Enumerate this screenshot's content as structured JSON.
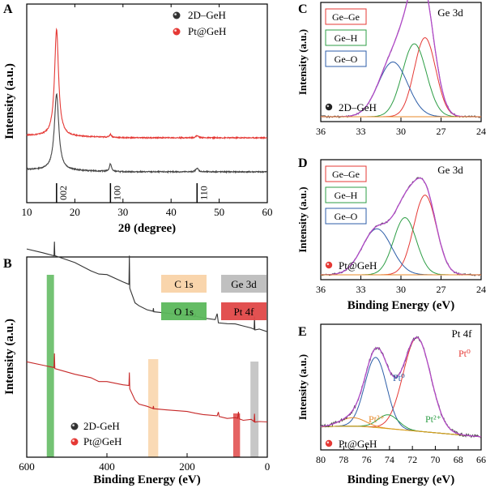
{
  "figure": {
    "panel_labels": {
      "a": "A",
      "b": "B",
      "c": "C",
      "d": "D",
      "e": "E"
    }
  },
  "chart_data": [
    {
      "panel": "A",
      "type": "line",
      "title": "",
      "xlabel": "2θ (degree)",
      "ylabel": "Intensity (a.u.)",
      "xlim": [
        10,
        60
      ],
      "x_ticks": [
        10,
        20,
        30,
        40,
        50,
        60
      ],
      "legend": [
        {
          "label": "2D–GeH",
          "color": "#333333"
        },
        {
          "label": "Pt@GeH",
          "color": "#e53935"
        }
      ],
      "reference_peaks": [
        {
          "x": 16.2,
          "label": "002"
        },
        {
          "x": 27.4,
          "label": "100"
        },
        {
          "x": 45.4,
          "label": "110"
        }
      ],
      "series": [
        {
          "name": "2D–GeH",
          "color": "#444444",
          "baseline": 0,
          "peaks": [
            {
              "x": 16.2,
              "h": 100,
              "w": 0.55
            },
            {
              "x": 27.4,
              "h": 10,
              "w": 0.25
            },
            {
              "x": 45.4,
              "h": 5,
              "w": 0.3
            }
          ]
        },
        {
          "name": "Pt@GeH",
          "color": "#e53935",
          "baseline": 46,
          "peaks": [
            {
              "x": 16.2,
              "h": 140,
              "w": 0.5
            },
            {
              "x": 27.4,
              "h": 4,
              "w": 0.25
            },
            {
              "x": 45.4,
              "h": 3,
              "w": 0.3
            }
          ]
        }
      ]
    },
    {
      "panel": "B",
      "type": "line",
      "xlabel": "Binding Energy (eV)",
      "ylabel": "Intensity (a.u.)",
      "xlim": [
        600,
        0
      ],
      "x_ticks": [
        600,
        400,
        200,
        0
      ],
      "legend": [
        {
          "label": "2D-GeH",
          "color": "#333333"
        },
        {
          "label": "Pt@GeH",
          "color": "#e53935"
        }
      ],
      "region_legend": [
        {
          "label": "C 1s",
          "color": "#f9d3a8"
        },
        {
          "label": "Ge 3d",
          "color": "#bdbdbd"
        },
        {
          "label": "O 1s",
          "color": "#5cb85c"
        },
        {
          "label": "Pt 4f",
          "color": "#e04848"
        }
      ],
      "regions": [
        {
          "label": "O 1s",
          "from": 532,
          "to": 550,
          "color": "#5cb85c"
        },
        {
          "label": "C 1s",
          "from": 272,
          "to": 297,
          "color": "#f9d3a8"
        },
        {
          "label": "Pt 4f",
          "from": 68,
          "to": 85,
          "color": "#e04848"
        },
        {
          "label": "Ge 3d",
          "from": 22,
          "to": 42,
          "color": "#bdbdbd"
        }
      ],
      "series": [
        {
          "name": "2D-GeH",
          "color": "#333333",
          "points": [
            [
              600,
              64
            ],
            [
              560,
              62
            ],
            [
              532,
              60
            ],
            [
              531,
              68
            ],
            [
              530,
              60
            ],
            [
              480,
              56
            ],
            [
              440,
              52
            ],
            [
              420,
              50
            ],
            [
              400,
              50
            ],
            [
              360,
              46
            ],
            [
              345,
              44
            ],
            [
              344,
              60
            ],
            [
              343,
              42
            ],
            [
              330,
              34
            ],
            [
              320,
              32
            ],
            [
              300,
              30
            ],
            [
              285,
              29
            ],
            [
              284,
              31
            ],
            [
              283,
              29
            ],
            [
              250,
              28
            ],
            [
              200,
              27
            ],
            [
              181,
              26
            ],
            [
              180,
              28
            ],
            [
              179,
              26
            ],
            [
              160,
              25
            ],
            [
              130,
              24
            ],
            [
              125,
              28
            ],
            [
              122,
              23
            ],
            [
              100,
              22
            ],
            [
              80,
              22
            ],
            [
              60,
              21
            ],
            [
              40,
              20
            ],
            [
              33,
              19
            ],
            [
              32,
              26
            ],
            [
              31,
              19
            ],
            [
              20,
              19
            ],
            [
              0,
              18
            ]
          ]
        },
        {
          "name": "Pt@GeH",
          "color": "#c62828",
          "points": [
            [
              600,
              42
            ],
            [
              560,
              40
            ],
            [
              532,
              38
            ],
            [
              531,
              47
            ],
            [
              530,
              38
            ],
            [
              480,
              34
            ],
            [
              440,
              32
            ],
            [
              420,
              30
            ],
            [
              400,
              30
            ],
            [
              360,
              28
            ],
            [
              345,
              27
            ],
            [
              344,
              35
            ],
            [
              343,
              25
            ],
            [
              330,
              18
            ],
            [
              320,
              16
            ],
            [
              300,
              14
            ],
            [
              285,
              13
            ],
            [
              284,
              15
            ],
            [
              283,
              13
            ],
            [
              250,
              12
            ],
            [
              200,
              11
            ],
            [
              180,
              10
            ],
            [
              160,
              9
            ],
            [
              125,
              9
            ],
            [
              122,
              11
            ],
            [
              120,
              8
            ],
            [
              100,
              7
            ],
            [
              80,
              7
            ],
            [
              74,
              7
            ],
            [
              72,
              11
            ],
            [
              70,
              7
            ],
            [
              60,
              6
            ],
            [
              40,
              6
            ],
            [
              33,
              5
            ],
            [
              32,
              10
            ],
            [
              31,
              5
            ],
            [
              20,
              5
            ],
            [
              0,
              5
            ]
          ]
        }
      ]
    },
    {
      "panel": "C",
      "type": "line",
      "title": "Ge 3d",
      "xlabel": "",
      "ylabel": "Intensity (a.u.)",
      "xlim": [
        36,
        24
      ],
      "x_ticks": [
        36,
        33,
        30,
        27,
        24
      ],
      "sample_label": "2D–GeH",
      "components": [
        {
          "name": "Ge–Ge",
          "color": "#e53935",
          "center": 28.2,
          "height": 78,
          "sigma": 0.8
        },
        {
          "name": "Ge–H",
          "color": "#2e9e46",
          "center": 29.0,
          "height": 72,
          "sigma": 0.9
        },
        {
          "name": "Ge–O",
          "color": "#2d5ea8",
          "center": 30.6,
          "height": 54,
          "sigma": 1.1
        }
      ],
      "envelope_color": "#b24bc9",
      "baseline": 6
    },
    {
      "panel": "D",
      "type": "line",
      "title": "Ge 3d",
      "xlabel": "Binding Energy (eV)",
      "ylabel": "Intensity (a.u.)",
      "xlim": [
        36,
        24
      ],
      "x_ticks": [
        36,
        33,
        30,
        27,
        24
      ],
      "sample_label": "Pt@GeH",
      "components": [
        {
          "name": "Ge–Ge",
          "color": "#e53935",
          "center": 28.2,
          "height": 78,
          "sigma": 0.85
        },
        {
          "name": "Ge–H",
          "color": "#2e9e46",
          "center": 29.7,
          "height": 56,
          "sigma": 0.85
        },
        {
          "name": "Ge–O",
          "color": "#2d5ea8",
          "center": 31.8,
          "height": 45,
          "sigma": 1.1
        }
      ],
      "envelope_color": "#b24bc9",
      "baseline": 6
    },
    {
      "panel": "E",
      "type": "line",
      "title": "Pt 4f",
      "xlabel": "Binding Energy (eV)",
      "ylabel": "Intensity (a.u.)",
      "xlim": [
        80,
        66
      ],
      "x_ticks": [
        80,
        78,
        76,
        74,
        72,
        70,
        68,
        66
      ],
      "sample_label": "Pt@GeH",
      "components": [
        {
          "name": "Pt⁰",
          "color": "#e53935",
          "center": 71.6,
          "height": 88,
          "sigma": 1.2
        },
        {
          "name": "Pt⁰",
          "color": "#2d5ea8",
          "center": 75.2,
          "height": 66,
          "sigma": 0.95
        },
        {
          "name": "Pt²⁺",
          "color": "#2e9e46",
          "center": 74.1,
          "height": 13,
          "sigma": 0.9
        },
        {
          "name": "Pt²⁺",
          "color": "#e88a2a",
          "center": 77.2,
          "height": 8,
          "sigma": 1.1
        }
      ],
      "component_labels": [
        {
          "text": "Pt⁰",
          "color": "#e53935"
        },
        {
          "text": "Pt⁰",
          "color": "#2d5ea8"
        },
        {
          "text": "Pt²⁺",
          "color": "#2e9e46"
        },
        {
          "text": "Pt²⁺",
          "color": "#e88a2a"
        }
      ],
      "envelope_color": "#b24bc9",
      "background_color": "#d4a017"
    }
  ]
}
